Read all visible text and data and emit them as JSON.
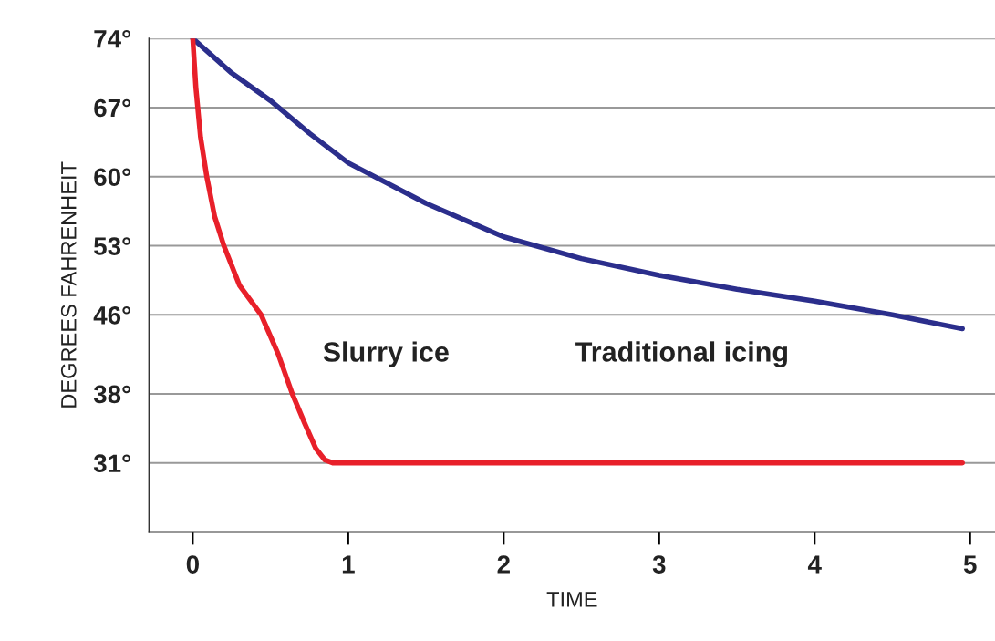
{
  "chart_data": {
    "type": "line",
    "xlabel": "TIME",
    "ylabel": "DEGREES FAHRENHEIT",
    "series": [
      {
        "name": "Traditional icing",
        "color": "#2b2e8c",
        "x": [
          0,
          0.25,
          0.5,
          0.75,
          1,
          1.5,
          2,
          2.5,
          3,
          3.5,
          4,
          4.5,
          4.95
        ],
        "values": [
          74,
          70.5,
          67.7,
          64.4,
          61.4,
          57.3,
          53.9,
          51.7,
          50,
          48.6,
          47.4,
          46,
          44.6
        ]
      },
      {
        "name": "Slurry ice",
        "color": "#e8202a",
        "x": [
          0,
          0.02,
          0.05,
          0.09,
          0.14,
          0.2,
          0.3,
          0.44,
          0.55,
          0.64,
          0.72,
          0.79,
          0.85,
          0.9,
          1,
          2,
          3,
          4,
          4.95
        ],
        "values": [
          74,
          69,
          64,
          60,
          56,
          53,
          49,
          46,
          42,
          38,
          35,
          32.5,
          31.3,
          31,
          31,
          31,
          31,
          31,
          31
        ]
      }
    ],
    "xlim": [
      -0.28,
      5.16
    ],
    "xticks": [
      0,
      1,
      2,
      3,
      4,
      5
    ],
    "ylim": [
      24,
      74
    ],
    "yticks": [
      {
        "value": 31,
        "label": "31°"
      },
      {
        "value": 38,
        "label": "38°"
      },
      {
        "value": 46,
        "label": "46°"
      },
      {
        "value": 53,
        "label": "53°"
      },
      {
        "value": 60,
        "label": "60°"
      },
      {
        "value": 67,
        "label": "67°"
      },
      {
        "value": 74,
        "label": "74°"
      }
    ],
    "grid": "y",
    "line_style": "solid",
    "marker": "none"
  }
}
